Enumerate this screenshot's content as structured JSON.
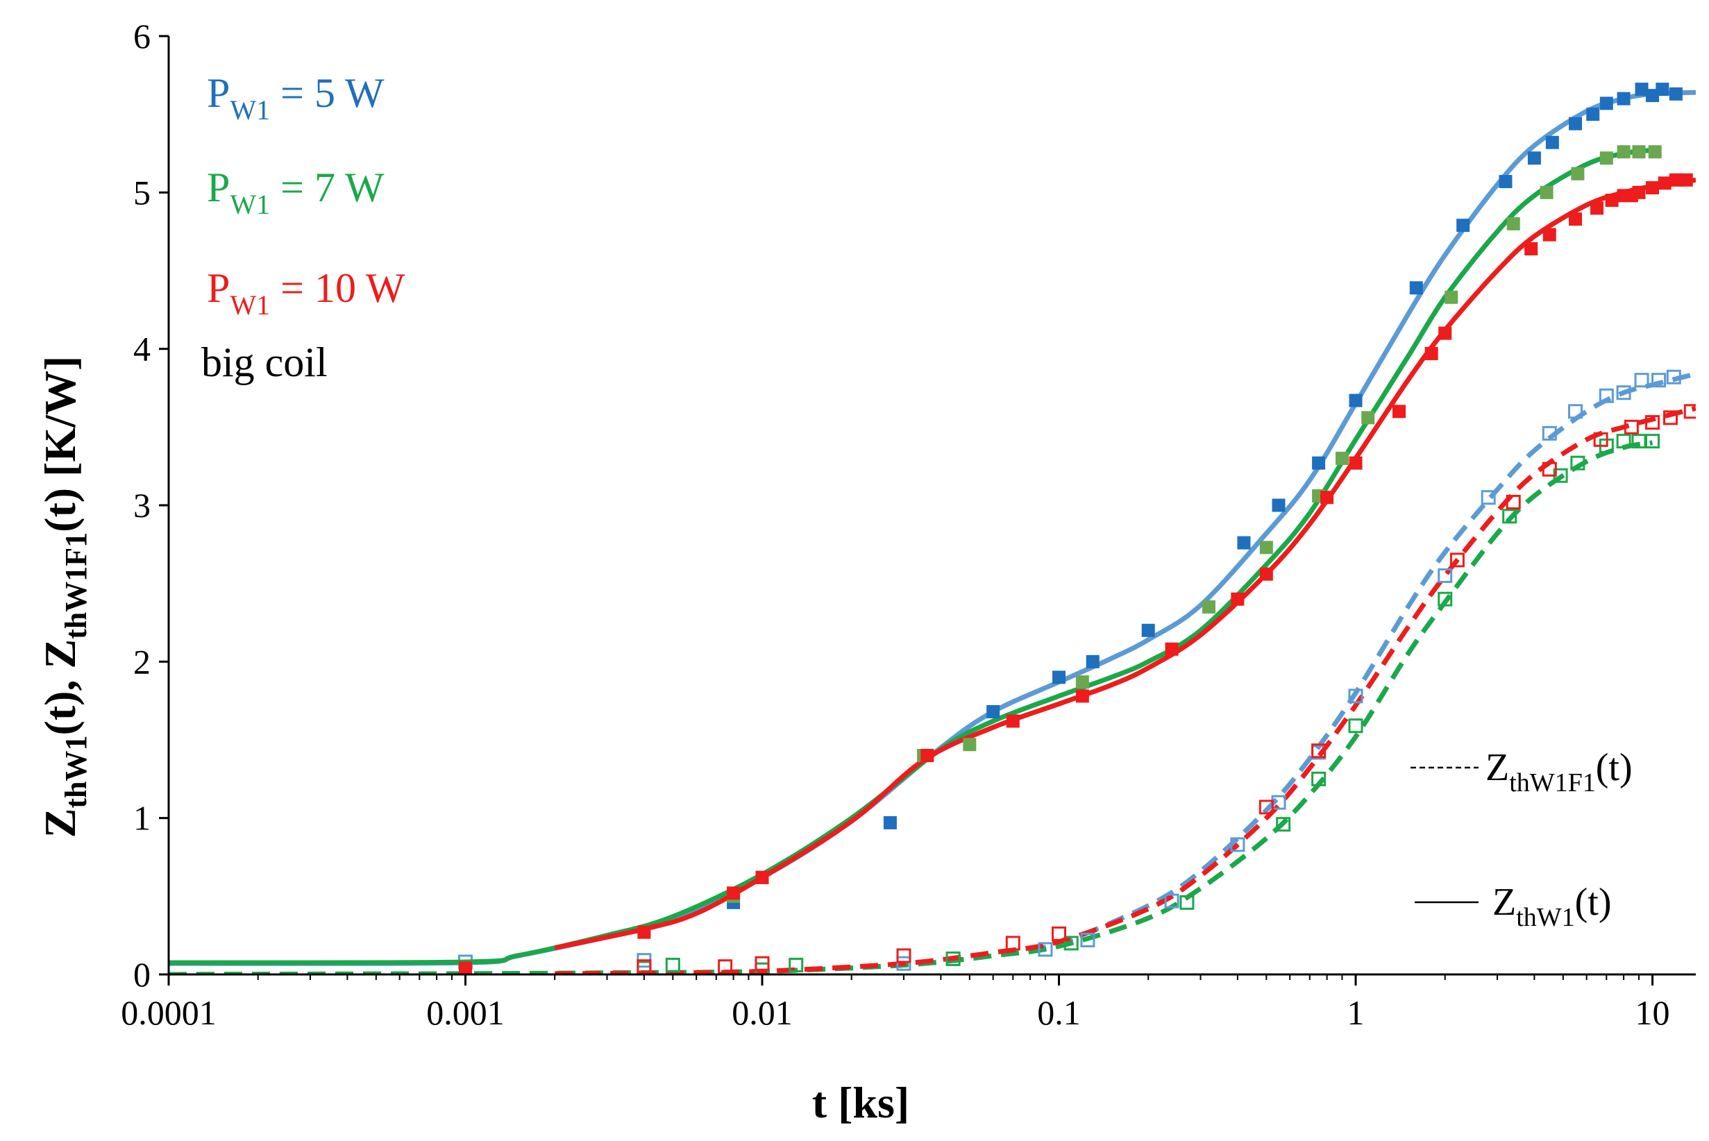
{
  "chart_data": {
    "type": "scatter",
    "xscale": "log",
    "xlim": [
      0.0001,
      14
    ],
    "ylim": [
      0,
      6
    ],
    "xlabel": "t [ks]",
    "ylabel": "Z_thW1(t), Z_thW1F1(t) [K/W]",
    "ylabel_parts": {
      "z1": "Z",
      "s1": "thW1",
      "m1": "(t), ",
      "z2": "Z",
      "s2": "thW1F1",
      "m2": "(t) [K/W]"
    },
    "xticks": [
      0.0001,
      0.001,
      0.01,
      0.1,
      1,
      10
    ],
    "xtick_labels": [
      "0.0001",
      "0.001",
      "0.01",
      "0.1",
      "1",
      "10"
    ],
    "yticks": [
      0,
      1,
      2,
      3,
      4,
      5,
      6
    ],
    "ytick_labels": [
      "0",
      "1",
      "2",
      "3",
      "4",
      "5",
      "6"
    ],
    "grid": false,
    "annotations": [
      {
        "id": "p5",
        "base": "P",
        "sub": "W1",
        "tail": " = 5 W",
        "color": "#1f6fbf"
      },
      {
        "id": "p7",
        "base": "P",
        "sub": "W1",
        "tail": " = 7 W",
        "color": "#1aa84a"
      },
      {
        "id": "p10",
        "base": "P",
        "sub": "W1",
        "tail": " = 10 W",
        "color": "#ee1c1c"
      },
      {
        "id": "coil",
        "text": "big coil",
        "color": "#000000"
      }
    ],
    "legend": [
      {
        "style": "dashed",
        "base": "Z",
        "sub": "thW1F1",
        "tail": "(t)"
      },
      {
        "style": "solid",
        "base": "Z",
        "sub": "thW1",
        "tail": "(t)"
      }
    ],
    "series": [
      {
        "name": "P_W1 = 5 W  Z_thW1 measured",
        "kind": "marker-filled",
        "color": "#1f6fbf",
        "points": [
          [
            0.001,
            0.01
          ],
          [
            0.008,
            0.46
          ],
          [
            0.01,
            0.62
          ],
          [
            0.027,
            0.97
          ],
          [
            0.06,
            1.68
          ],
          [
            0.1,
            1.9
          ],
          [
            0.13,
            2.0
          ],
          [
            0.2,
            2.2
          ],
          [
            0.42,
            2.76
          ],
          [
            0.55,
            3.0
          ],
          [
            0.75,
            3.27
          ],
          [
            1.0,
            3.67
          ],
          [
            1.6,
            4.39
          ],
          [
            2.3,
            4.79
          ],
          [
            3.2,
            5.07
          ],
          [
            4.0,
            5.22
          ],
          [
            4.6,
            5.32
          ],
          [
            5.5,
            5.44
          ],
          [
            6.3,
            5.5
          ],
          [
            7.0,
            5.57
          ],
          [
            8.0,
            5.6
          ],
          [
            9.2,
            5.66
          ],
          [
            10.0,
            5.62
          ],
          [
            10.8,
            5.66
          ],
          [
            12.0,
            5.63
          ]
        ]
      },
      {
        "name": "P_W1 = 5 W  Z_thW1 model",
        "kind": "line-solid",
        "color": "#5b9bd5",
        "points": [
          [
            0.0001,
            0.07
          ],
          [
            0.001,
            0.075
          ],
          [
            0.0015,
            0.12
          ],
          [
            0.003,
            0.24
          ],
          [
            0.005,
            0.36
          ],
          [
            0.01,
            0.62
          ],
          [
            0.02,
            0.98
          ],
          [
            0.04,
            1.45
          ],
          [
            0.06,
            1.68
          ],
          [
            0.1,
            1.87
          ],
          [
            0.15,
            2.02
          ],
          [
            0.2,
            2.14
          ],
          [
            0.3,
            2.36
          ],
          [
            0.5,
            2.82
          ],
          [
            0.7,
            3.16
          ],
          [
            1.0,
            3.65
          ],
          [
            1.5,
            4.22
          ],
          [
            2.0,
            4.6
          ],
          [
            3.0,
            5.05
          ],
          [
            4.0,
            5.3
          ],
          [
            6.0,
            5.52
          ],
          [
            8.0,
            5.6
          ],
          [
            10.0,
            5.63
          ],
          [
            14.0,
            5.64
          ]
        ]
      },
      {
        "name": "P_W1 = 7 W  Z_thW1 measured",
        "kind": "marker-filled",
        "color": "#6aa84f",
        "points": [
          [
            0.001,
            0.03
          ],
          [
            0.008,
            0.5
          ],
          [
            0.01,
            0.62
          ],
          [
            0.035,
            1.4
          ],
          [
            0.05,
            1.47
          ],
          [
            0.12,
            1.87
          ],
          [
            0.32,
            2.35
          ],
          [
            0.5,
            2.73
          ],
          [
            0.75,
            3.06
          ],
          [
            0.9,
            3.3
          ],
          [
            1.1,
            3.56
          ],
          [
            2.1,
            4.33
          ],
          [
            3.4,
            4.8
          ],
          [
            4.4,
            5.0
          ],
          [
            5.6,
            5.12
          ],
          [
            7.0,
            5.22
          ],
          [
            8.0,
            5.26
          ],
          [
            9.0,
            5.26
          ],
          [
            10.2,
            5.26
          ]
        ]
      },
      {
        "name": "P_W1 = 7 W  Z_thW1 model",
        "kind": "line-solid",
        "color": "#1aa84a",
        "points": [
          [
            0.0001,
            0.075
          ],
          [
            0.001,
            0.08
          ],
          [
            0.0015,
            0.12
          ],
          [
            0.003,
            0.25
          ],
          [
            0.005,
            0.37
          ],
          [
            0.01,
            0.64
          ],
          [
            0.02,
            1.0
          ],
          [
            0.04,
            1.44
          ],
          [
            0.06,
            1.62
          ],
          [
            0.1,
            1.78
          ],
          [
            0.15,
            1.9
          ],
          [
            0.2,
            2.0
          ],
          [
            0.3,
            2.2
          ],
          [
            0.5,
            2.62
          ],
          [
            0.7,
            2.95
          ],
          [
            1.0,
            3.42
          ],
          [
            1.5,
            3.95
          ],
          [
            2.0,
            4.33
          ],
          [
            3.0,
            4.75
          ],
          [
            4.0,
            4.98
          ],
          [
            6.0,
            5.18
          ],
          [
            8.0,
            5.25
          ],
          [
            10.0,
            5.27
          ]
        ]
      },
      {
        "name": "P_W1 = 10 W  Z_thW1 measured",
        "kind": "marker-filled",
        "color": "#ee1c1c",
        "points": [
          [
            0.001,
            0.04
          ],
          [
            0.004,
            0.27
          ],
          [
            0.008,
            0.52
          ],
          [
            0.01,
            0.62
          ],
          [
            0.036,
            1.4
          ],
          [
            0.07,
            1.62
          ],
          [
            0.12,
            1.78
          ],
          [
            0.24,
            2.08
          ],
          [
            0.4,
            2.4
          ],
          [
            0.5,
            2.56
          ],
          [
            0.8,
            3.05
          ],
          [
            1.0,
            3.27
          ],
          [
            1.4,
            3.6
          ],
          [
            1.8,
            3.97
          ],
          [
            2.0,
            4.1
          ],
          [
            3.9,
            4.64
          ],
          [
            4.5,
            4.73
          ],
          [
            5.5,
            4.83
          ],
          [
            6.5,
            4.9
          ],
          [
            7.3,
            4.95
          ],
          [
            8.0,
            4.98
          ],
          [
            8.5,
            4.98
          ],
          [
            9.0,
            5.0
          ],
          [
            10.0,
            5.03
          ],
          [
            11.0,
            5.06
          ],
          [
            12.0,
            5.08
          ],
          [
            13.0,
            5.08
          ]
        ]
      },
      {
        "name": "P_W1 = 10 W  Z_thW1 model",
        "kind": "line-solid",
        "color": "#ee1c1c",
        "points": [
          [
            0.002,
            0.17
          ],
          [
            0.004,
            0.29
          ],
          [
            0.006,
            0.39
          ],
          [
            0.01,
            0.62
          ],
          [
            0.02,
            0.98
          ],
          [
            0.035,
            1.37
          ],
          [
            0.06,
            1.58
          ],
          [
            0.1,
            1.73
          ],
          [
            0.15,
            1.85
          ],
          [
            0.2,
            1.96
          ],
          [
            0.3,
            2.17
          ],
          [
            0.5,
            2.56
          ],
          [
            0.7,
            2.88
          ],
          [
            1.0,
            3.3
          ],
          [
            1.5,
            3.8
          ],
          [
            2.0,
            4.12
          ],
          [
            3.0,
            4.5
          ],
          [
            4.0,
            4.72
          ],
          [
            6.0,
            4.92
          ],
          [
            8.0,
            5.0
          ],
          [
            10.0,
            5.04
          ],
          [
            14.0,
            5.08
          ]
        ]
      },
      {
        "name": "P_W1 = 5 W  Z_thW1F1 measured",
        "kind": "marker-open",
        "color": "#5b9bd5",
        "points": [
          [
            0.001,
            0.08
          ],
          [
            0.004,
            0.09
          ],
          [
            0.03,
            0.07
          ],
          [
            0.09,
            0.16
          ],
          [
            0.125,
            0.22
          ],
          [
            0.24,
            0.47
          ],
          [
            0.4,
            0.83
          ],
          [
            0.55,
            1.1
          ],
          [
            0.75,
            1.42
          ],
          [
            1.0,
            1.78
          ],
          [
            2.0,
            2.55
          ],
          [
            2.8,
            3.05
          ],
          [
            4.5,
            3.46
          ],
          [
            5.5,
            3.6
          ],
          [
            7.0,
            3.7
          ],
          [
            8.0,
            3.72
          ],
          [
            9.2,
            3.8
          ],
          [
            10.5,
            3.8
          ],
          [
            11.8,
            3.82
          ]
        ]
      },
      {
        "name": "P_W1 = 5 W  Z_thW1F1 model",
        "kind": "line-dashed",
        "color": "#5b9bd5",
        "points": [
          [
            0.0001,
            0.0
          ],
          [
            0.001,
            0.005
          ],
          [
            0.003,
            0.01
          ],
          [
            0.01,
            0.02
          ],
          [
            0.03,
            0.06
          ],
          [
            0.06,
            0.12
          ],
          [
            0.1,
            0.2
          ],
          [
            0.2,
            0.44
          ],
          [
            0.3,
            0.66
          ],
          [
            0.5,
            1.05
          ],
          [
            0.7,
            1.38
          ],
          [
            1.0,
            1.8
          ],
          [
            1.5,
            2.35
          ],
          [
            2.0,
            2.7
          ],
          [
            3.0,
            3.1
          ],
          [
            4.0,
            3.35
          ],
          [
            6.0,
            3.6
          ],
          [
            8.0,
            3.72
          ],
          [
            10.0,
            3.77
          ],
          [
            14.0,
            3.84
          ]
        ]
      },
      {
        "name": "P_W1 = 7 W  Z_thW1F1 measured",
        "kind": "marker-open",
        "color": "#1aa84a",
        "points": [
          [
            0.004,
            0.04
          ],
          [
            0.005,
            0.06
          ],
          [
            0.01,
            0.03
          ],
          [
            0.013,
            0.06
          ],
          [
            0.044,
            0.1
          ],
          [
            0.11,
            0.2
          ],
          [
            0.27,
            0.46
          ],
          [
            0.57,
            0.96
          ],
          [
            0.75,
            1.25
          ],
          [
            1.0,
            1.59
          ],
          [
            2.0,
            2.4
          ],
          [
            3.3,
            2.93
          ],
          [
            4.9,
            3.19
          ],
          [
            5.6,
            3.27
          ],
          [
            7.0,
            3.38
          ],
          [
            8.0,
            3.41
          ],
          [
            9.0,
            3.41
          ],
          [
            10.0,
            3.41
          ]
        ]
      },
      {
        "name": "P_W1 = 7 W  Z_thW1F1 model",
        "kind": "line-dashed",
        "color": "#1aa84a",
        "points": [
          [
            0.0001,
            0.0
          ],
          [
            0.001,
            0.005
          ],
          [
            0.003,
            0.01
          ],
          [
            0.01,
            0.02
          ],
          [
            0.03,
            0.06
          ],
          [
            0.06,
            0.12
          ],
          [
            0.1,
            0.18
          ],
          [
            0.2,
            0.36
          ],
          [
            0.3,
            0.55
          ],
          [
            0.5,
            0.87
          ],
          [
            0.7,
            1.15
          ],
          [
            1.0,
            1.52
          ],
          [
            1.5,
            2.05
          ],
          [
            2.0,
            2.38
          ],
          [
            3.0,
            2.82
          ],
          [
            4.0,
            3.06
          ],
          [
            6.0,
            3.28
          ],
          [
            8.0,
            3.37
          ],
          [
            10.0,
            3.4
          ]
        ]
      },
      {
        "name": "P_W1 = 10 W  Z_thW1F1 measured",
        "kind": "marker-open",
        "color": "#ee1c1c",
        "points": [
          [
            0.004,
            0.05
          ],
          [
            0.0075,
            0.05
          ],
          [
            0.01,
            0.07
          ],
          [
            0.03,
            0.12
          ],
          [
            0.07,
            0.2
          ],
          [
            0.1,
            0.26
          ],
          [
            0.5,
            1.07
          ],
          [
            0.75,
            1.43
          ],
          [
            2.2,
            2.65
          ],
          [
            3.4,
            3.02
          ],
          [
            4.5,
            3.23
          ],
          [
            6.7,
            3.42
          ],
          [
            8.5,
            3.5
          ],
          [
            10.0,
            3.53
          ],
          [
            11.5,
            3.56
          ],
          [
            13.5,
            3.6
          ]
        ]
      },
      {
        "name": "P_W1 = 10 W  Z_thW1F1 model",
        "kind": "line-dashed",
        "color": "#ee1c1c",
        "points": [
          [
            0.002,
            0.005
          ],
          [
            0.005,
            0.01
          ],
          [
            0.01,
            0.02
          ],
          [
            0.03,
            0.07
          ],
          [
            0.06,
            0.14
          ],
          [
            0.1,
            0.21
          ],
          [
            0.2,
            0.42
          ],
          [
            0.3,
            0.63
          ],
          [
            0.5,
            1.0
          ],
          [
            0.7,
            1.32
          ],
          [
            1.0,
            1.72
          ],
          [
            1.5,
            2.22
          ],
          [
            2.0,
            2.55
          ],
          [
            3.0,
            2.96
          ],
          [
            4.0,
            3.2
          ],
          [
            6.0,
            3.42
          ],
          [
            8.0,
            3.5
          ],
          [
            10.0,
            3.55
          ],
          [
            14.0,
            3.62
          ]
        ]
      }
    ]
  }
}
